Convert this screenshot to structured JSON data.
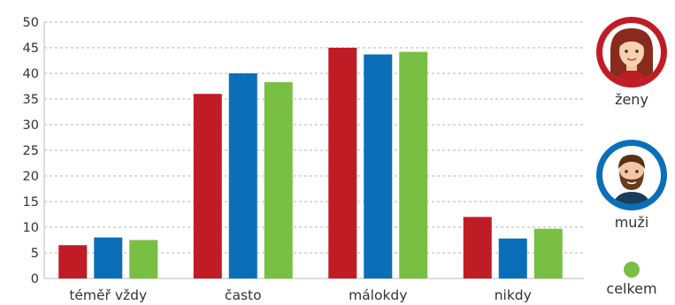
{
  "chart_data": {
    "type": "bar",
    "categories": [
      "téměř vždy",
      "často",
      "málokdy",
      "nikdy"
    ],
    "series": [
      {
        "name": "ženy",
        "color": "#c01c25",
        "values": [
          6.5,
          36,
          45,
          12
        ]
      },
      {
        "name": "muži",
        "color": "#0a6fb8",
        "values": [
          8,
          40,
          43.7,
          7.8
        ]
      },
      {
        "name": "celkem",
        "color": "#78bf44",
        "values": [
          7.5,
          38.3,
          44.2,
          9.7
        ]
      }
    ],
    "ylim": [
      0,
      50
    ],
    "yticks": [
      "0",
      "5",
      "10",
      "15",
      "20",
      "25",
      "30",
      "35",
      "40",
      "45",
      "50"
    ],
    "grid": true,
    "legend_position": "right"
  },
  "legend": {
    "women_icon": "woman-avatar-icon",
    "men_icon": "man-avatar-icon",
    "total_icon": "green-dot-icon"
  }
}
